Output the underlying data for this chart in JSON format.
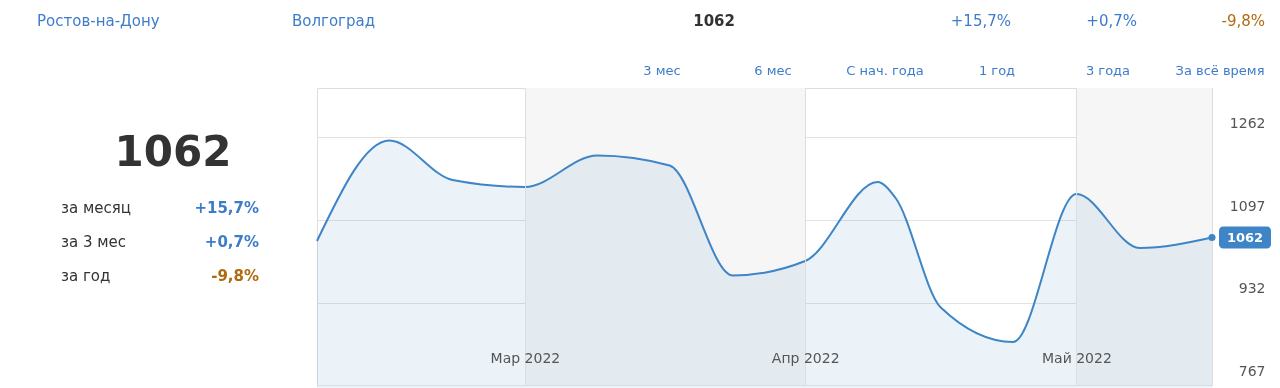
{
  "chart_data": {
    "type": "area",
    "x": [
      "2022-02-06",
      "2022-02-14",
      "2022-02-21",
      "2022-03-01",
      "2022-03-09",
      "2022-03-17",
      "2022-03-24",
      "2022-04-01",
      "2022-04-09",
      "2022-04-11",
      "2022-04-16",
      "2022-04-24",
      "2022-05-01",
      "2022-05-08",
      "2022-05-16"
    ],
    "series": [
      {
        "color": "#3d85c6",
        "values": [
          1055,
          1256,
          1177,
          1163,
          1226,
          1206,
          986,
          1015,
          1173,
          1141,
          922,
          853,
          1149,
          1041,
          1062
        ],
        "value_labels": [
          null,
          null,
          null,
          null,
          null,
          null,
          null,
          null,
          null,
          null,
          null,
          null,
          null,
          null,
          "1062"
        ]
      }
    ],
    "xlim": [
      "2022-02-06",
      "2022-05-16"
    ],
    "xticks": [
      {
        "value": "2022-03-01",
        "label": "Мар 2022"
      },
      {
        "value": "2022-04-01",
        "label": "Апр 2022"
      },
      {
        "value": "2022-05-01",
        "label": "Май 2022"
      }
    ],
    "ylim": [
      767,
      1361
    ],
    "yticks": [
      767,
      932,
      1097,
      1262
    ],
    "grid": true,
    "bands": [
      {
        "axis": "x",
        "from": "2022-03-01",
        "to": "2022-04-01",
        "color": "#f6f6f6"
      },
      {
        "axis": "x",
        "from": "2022-05-01",
        "to": "2022-05-16",
        "color": "#f6f6f6"
      }
    ],
    "annotations": [
      "Ростов-на-Дону",
      "Волгоград",
      "1062",
      "+15,7%",
      "+0,7%",
      "-9,8%",
      "1062",
      "за месяц",
      "+15,7%",
      "за 3 мес",
      "+0,7%",
      "за год",
      "-9,8%",
      "3 мес",
      "6 мес",
      "С нач. года",
      "1 год",
      "3 года",
      "За всё время"
    ]
  }
}
